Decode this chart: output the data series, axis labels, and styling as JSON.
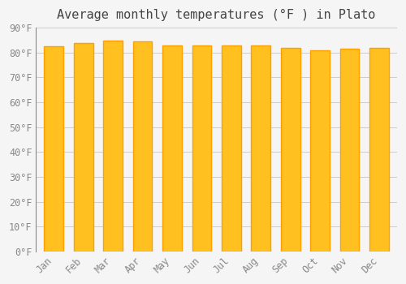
{
  "title": "Average monthly temperatures (°F ) in Plato",
  "months": [
    "Jan",
    "Feb",
    "Mar",
    "Apr",
    "May",
    "Jun",
    "Jul",
    "Aug",
    "Sep",
    "Oct",
    "Nov",
    "Dec"
  ],
  "values": [
    82.5,
    84.0,
    85.0,
    84.5,
    83.0,
    83.0,
    83.0,
    83.0,
    82.0,
    81.0,
    81.5,
    82.0
  ],
  "bar_color_top": "#FFC020",
  "bar_color_bottom": "#FFA000",
  "background_color": "#f5f5f5",
  "grid_color": "#cccccc",
  "ylim": [
    0,
    90
  ],
  "yticks": [
    0,
    10,
    20,
    30,
    40,
    50,
    60,
    70,
    80,
    90
  ],
  "title_fontsize": 11,
  "tick_fontsize": 8.5,
  "title_color": "#444444",
  "tick_color": "#888888"
}
